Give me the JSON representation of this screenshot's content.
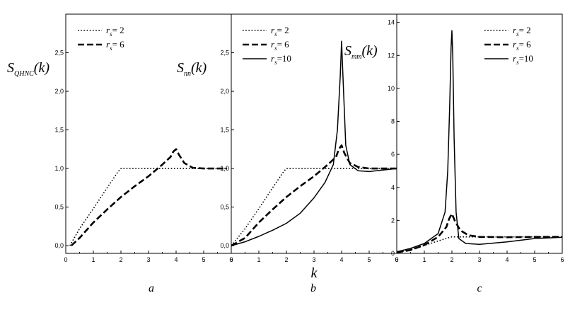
{
  "chart_data": [
    {
      "type": "line",
      "panel_label": "a",
      "ylabel": "S",
      "ylabel_sub": "QHNC",
      "ylabel_arg": "(k)",
      "xlim": [
        0,
        6
      ],
      "ylim": [
        -0.1,
        3.0
      ],
      "xticks": [
        "0",
        "1",
        "2",
        "3",
        "4",
        "5",
        "6"
      ],
      "yticks": [
        "0,0",
        "0,5",
        "1,0",
        "1,5",
        "2,0",
        "2,5"
      ],
      "grid": false,
      "legend_position": "top-left",
      "series": [
        {
          "name": "r",
          "name_sub": "s",
          "name_value": "= 2",
          "style": "dotted",
          "x": [
            0.15,
            0.5,
            1.0,
            1.5,
            1.9,
            2.0,
            2.5,
            3.0,
            3.5,
            4.0,
            5.0,
            5.85
          ],
          "y": [
            0.0,
            0.22,
            0.48,
            0.75,
            0.96,
            1.0,
            1.0,
            1.0,
            1.0,
            1.0,
            1.0,
            1.0
          ]
        },
        {
          "name": "r",
          "name_sub": "s",
          "name_value": "= 6",
          "style": "dashed",
          "x": [
            0.2,
            0.5,
            1.0,
            1.5,
            2.0,
            2.5,
            3.0,
            3.5,
            3.8,
            3.9,
            4.0,
            4.1,
            4.3,
            4.6,
            5.0,
            5.5,
            5.85
          ],
          "y": [
            0.0,
            0.1,
            0.3,
            0.47,
            0.63,
            0.77,
            0.9,
            1.05,
            1.15,
            1.22,
            1.25,
            1.18,
            1.07,
            1.01,
            1.0,
            1.0,
            1.0
          ]
        }
      ]
    },
    {
      "type": "line",
      "panel_label": "b",
      "xlabel": "k",
      "ylabel": "S",
      "ylabel_sub": "nn",
      "ylabel_arg": "(k)",
      "xlim": [
        0,
        6
      ],
      "ylim": [
        -0.1,
        3.0
      ],
      "xticks": [
        "0",
        "1",
        "2",
        "3",
        "4",
        "5",
        "6"
      ],
      "yticks": [
        "0,0",
        "0,5",
        "1,0",
        "1,5",
        "2,0",
        "2,5"
      ],
      "grid": false,
      "legend_position": "top-left",
      "series": [
        {
          "name": "r",
          "name_sub": "s",
          "name_value": "= 2",
          "style": "dotted",
          "x": [
            0.0,
            0.5,
            1.0,
            1.5,
            1.9,
            2.0,
            2.5,
            3.0,
            4.0,
            5.0,
            6.0
          ],
          "y": [
            0.0,
            0.22,
            0.48,
            0.75,
            0.96,
            1.0,
            1.0,
            1.0,
            1.0,
            1.0,
            1.0
          ]
        },
        {
          "name": "r",
          "name_sub": "s",
          "name_value": "= 6",
          "style": "dashed",
          "x": [
            0.0,
            0.5,
            1.0,
            1.5,
            2.0,
            2.5,
            3.0,
            3.5,
            3.8,
            3.9,
            4.0,
            4.1,
            4.3,
            4.6,
            5.0,
            5.5,
            6.0
          ],
          "y": [
            0.0,
            0.1,
            0.3,
            0.47,
            0.63,
            0.77,
            0.9,
            1.05,
            1.15,
            1.25,
            1.3,
            1.2,
            1.07,
            1.02,
            1.0,
            1.0,
            1.0
          ]
        },
        {
          "name": "r",
          "name_sub": "s",
          "name_value": "=10",
          "style": "solid",
          "x": [
            0.0,
            0.5,
            1.0,
            1.5,
            2.0,
            2.5,
            3.0,
            3.4,
            3.7,
            3.85,
            3.95,
            4.0,
            4.05,
            4.15,
            4.3,
            4.6,
            5.0,
            5.5,
            6.0
          ],
          "y": [
            0.0,
            0.05,
            0.12,
            0.2,
            0.29,
            0.42,
            0.62,
            0.82,
            1.05,
            1.5,
            2.2,
            2.65,
            2.2,
            1.3,
            1.05,
            0.97,
            0.96,
            0.98,
            1.0
          ]
        }
      ]
    },
    {
      "type": "line",
      "panel_label": "c",
      "ylabel": "S",
      "ylabel_sub": "mm",
      "ylabel_arg": "(k)",
      "xlim": [
        0,
        6
      ],
      "ylim": [
        0,
        14.5
      ],
      "xticks": [
        "0",
        "1",
        "2",
        "3",
        "4",
        "5",
        "6"
      ],
      "yticks": [
        "0",
        "2",
        "4",
        "6",
        "8",
        "10",
        "12",
        "14"
      ],
      "grid": false,
      "legend_position": "top-right",
      "series": [
        {
          "name": "r",
          "name_sub": "s",
          "name_value": "= 2",
          "style": "dotted",
          "x": [
            0.0,
            0.5,
            1.0,
            1.5,
            1.9,
            2.0,
            2.5,
            3.0,
            4.0,
            5.0,
            6.0
          ],
          "y": [
            0.05,
            0.22,
            0.48,
            0.75,
            0.96,
            1.0,
            1.0,
            1.0,
            1.0,
            1.0,
            1.0
          ]
        },
        {
          "name": "r",
          "name_sub": "s",
          "name_value": "= 6",
          "style": "dashed",
          "x": [
            0.0,
            0.5,
            1.0,
            1.5,
            1.8,
            1.9,
            2.0,
            2.1,
            2.3,
            2.6,
            3.0,
            4.0,
            5.0,
            6.0
          ],
          "y": [
            0.05,
            0.2,
            0.5,
            1.0,
            1.6,
            2.1,
            2.4,
            2.0,
            1.4,
            1.1,
            1.0,
            0.98,
            1.0,
            1.0
          ]
        },
        {
          "name": "r",
          "name_sub": "s",
          "name_value": "=10",
          "style": "solid",
          "x": [
            0.0,
            0.5,
            1.0,
            1.5,
            1.75,
            1.85,
            1.92,
            1.97,
            2.0,
            2.03,
            2.08,
            2.15,
            2.25,
            2.5,
            3.0,
            4.0,
            5.0,
            6.0
          ],
          "y": [
            0.1,
            0.3,
            0.6,
            1.2,
            2.5,
            5.0,
            9.0,
            12.5,
            13.5,
            12.0,
            7.0,
            2.5,
            0.9,
            0.6,
            0.55,
            0.7,
            0.9,
            0.98
          ]
        }
      ]
    }
  ]
}
